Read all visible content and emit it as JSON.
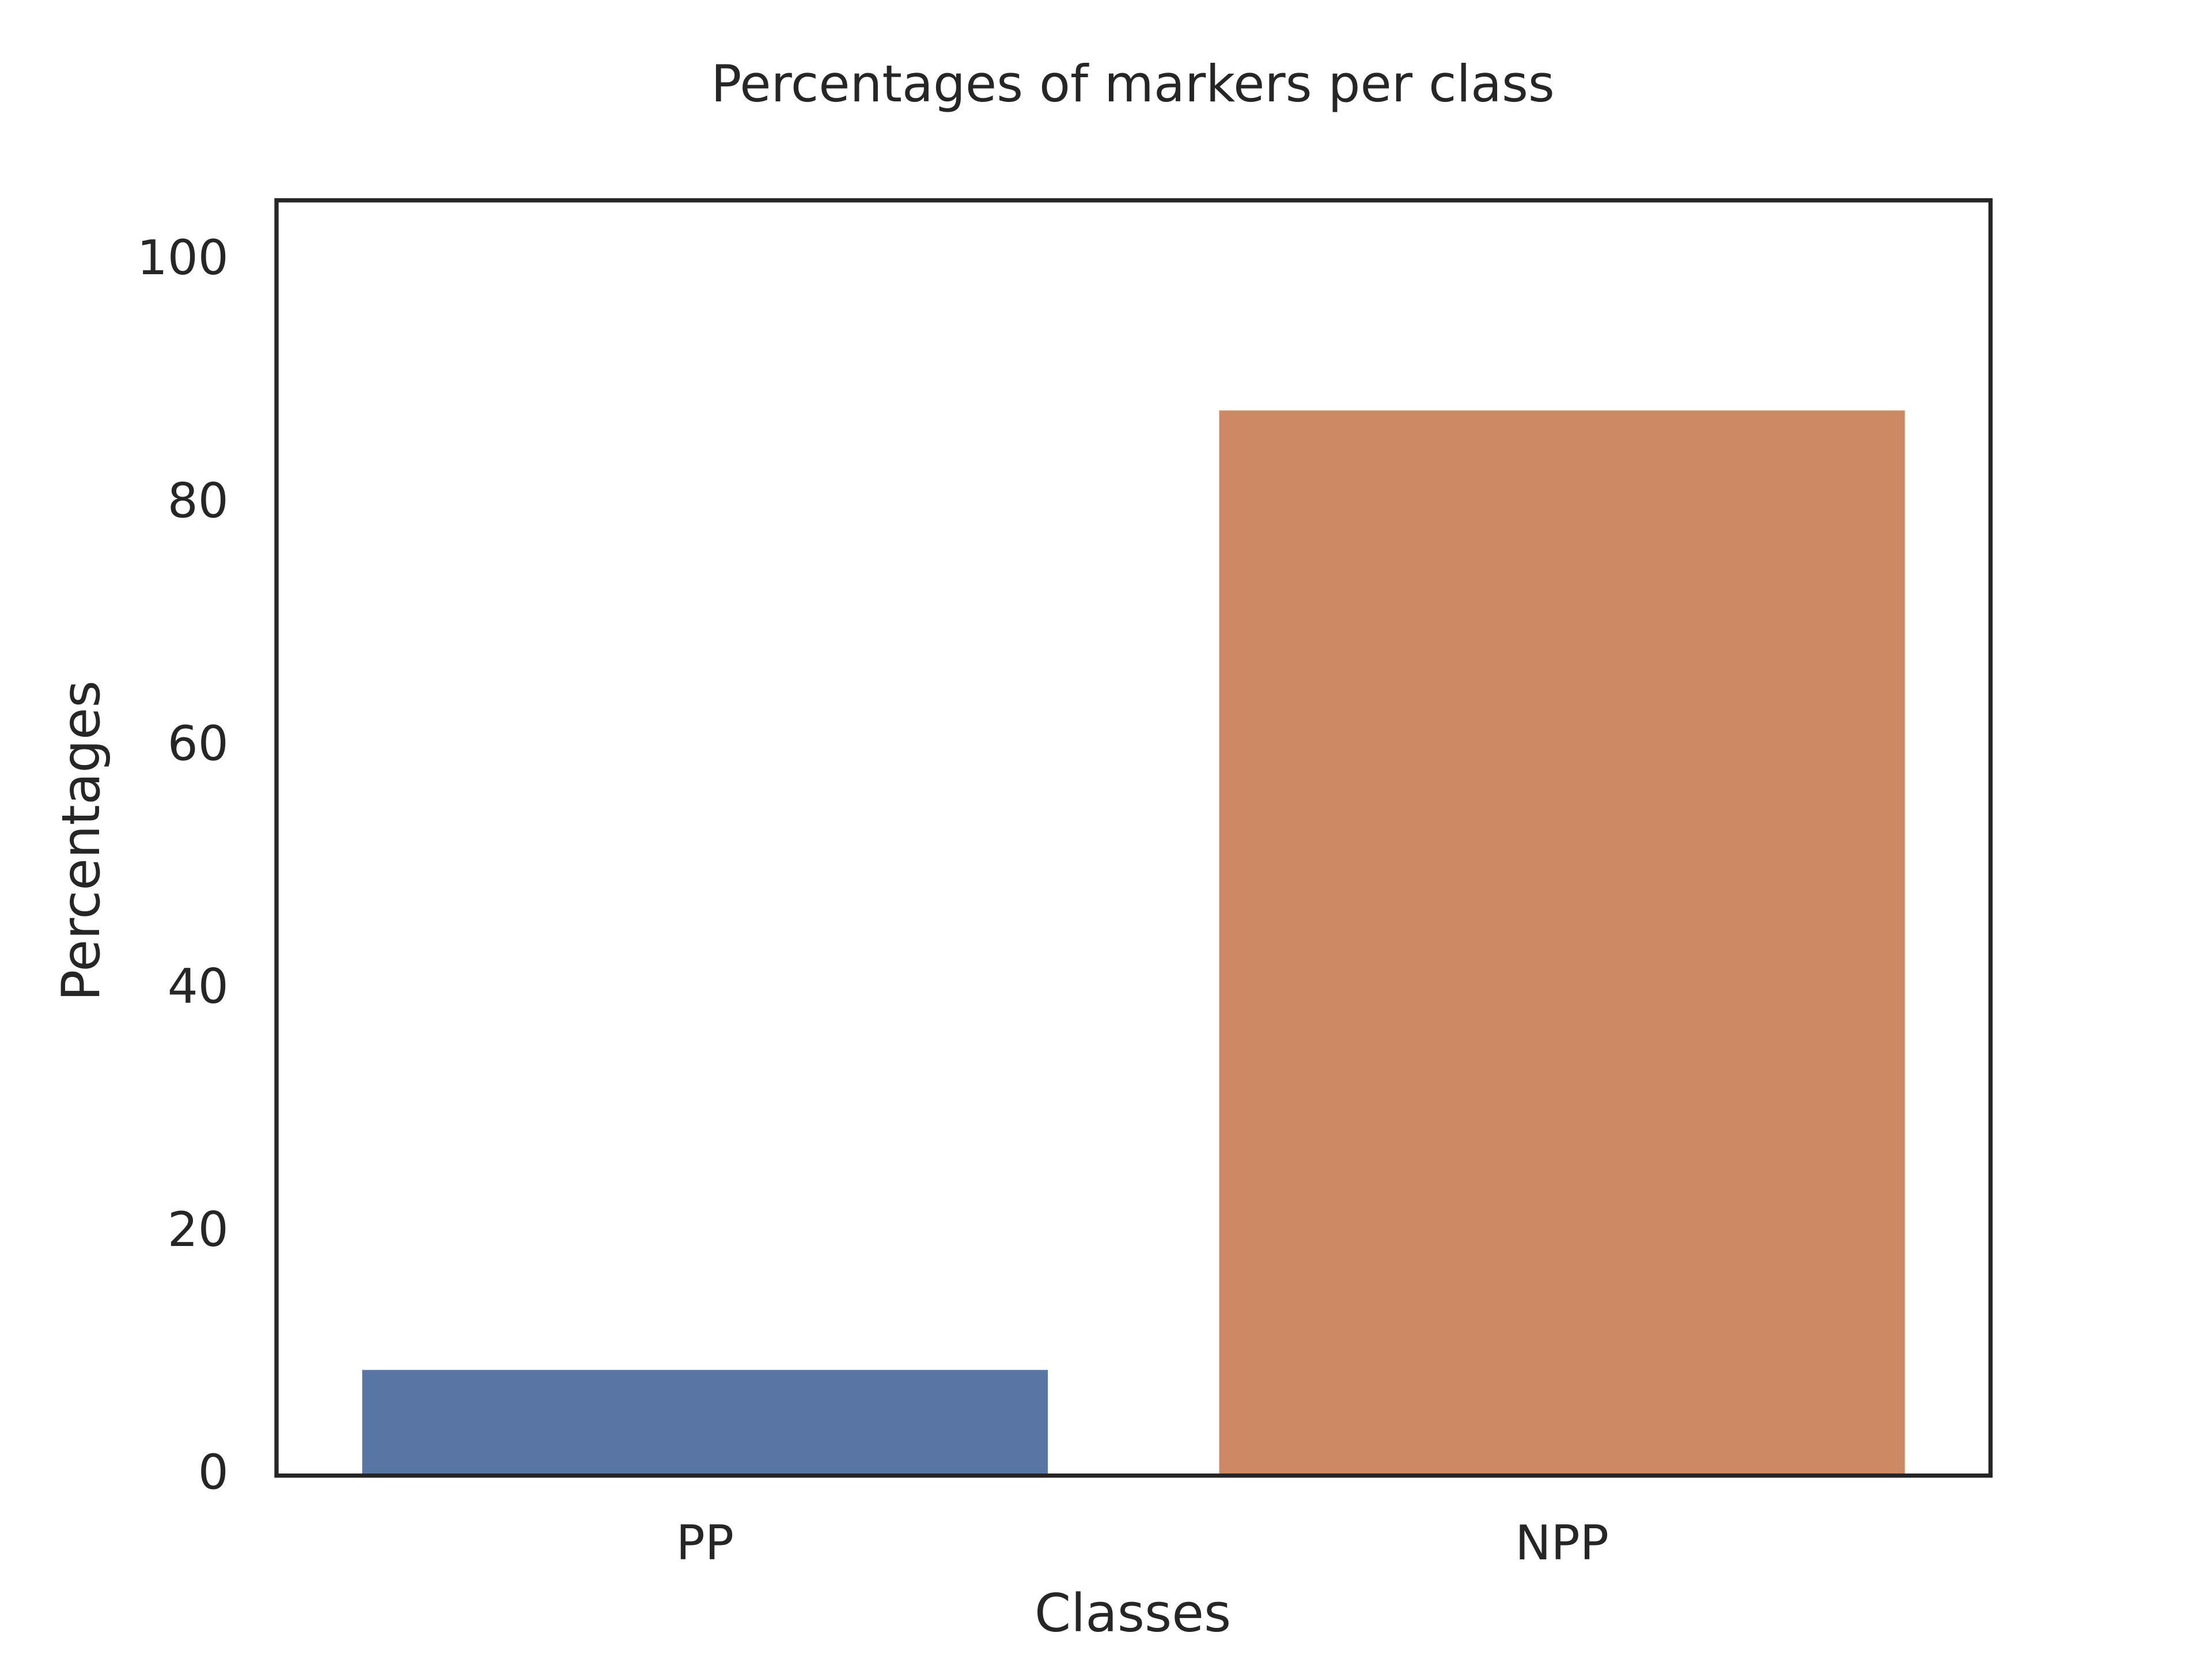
{
  "chart_data": {
    "type": "bar",
    "title": "Percentages of markers per class",
    "x_label": "Classes",
    "y_label": "Percentages",
    "categories": [
      "PP",
      "NPP"
    ],
    "values": [
      8.7,
      87.7
    ],
    "colors": [
      "#5975a4",
      "#cc8963"
    ],
    "ylim": [
      0,
      105
    ],
    "yticks": [
      0,
      20,
      40,
      60,
      80,
      100
    ],
    "grid": false
  }
}
